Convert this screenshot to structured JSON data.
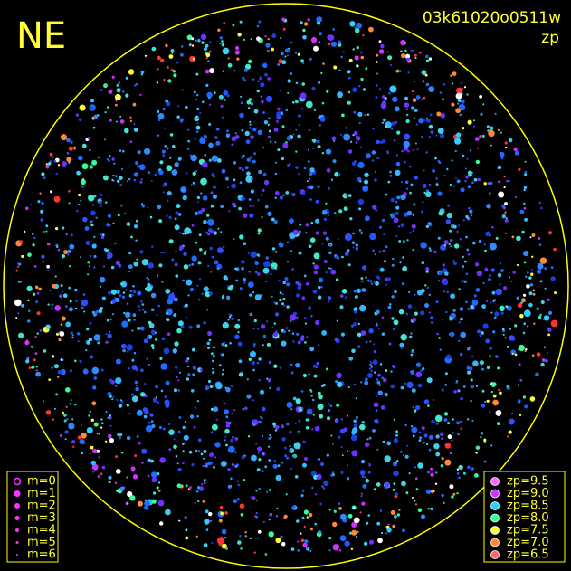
{
  "header": {
    "corner_label": "NE",
    "title": "03k61020o0511w",
    "subtitle": "zp"
  },
  "magnitude_legend": [
    "m=0",
    "m=1",
    "m=2",
    "m=3",
    "m=4",
    "m=5",
    "m=6"
  ],
  "zp_legend": [
    {
      "label": "zp=9.5",
      "color": "#ff66ff"
    },
    {
      "label": "zp=9.0",
      "color": "#cc33ff"
    },
    {
      "label": "zp=8.5",
      "color": "#33ccff"
    },
    {
      "label": "zp=8.0",
      "color": "#33ff99"
    },
    {
      "label": "zp=7.5",
      "color": "#ffff33"
    },
    {
      "label": "zp=7.0",
      "color": "#ff8833"
    },
    {
      "label": "zp=6.5",
      "color": "#ff6677"
    }
  ]
}
